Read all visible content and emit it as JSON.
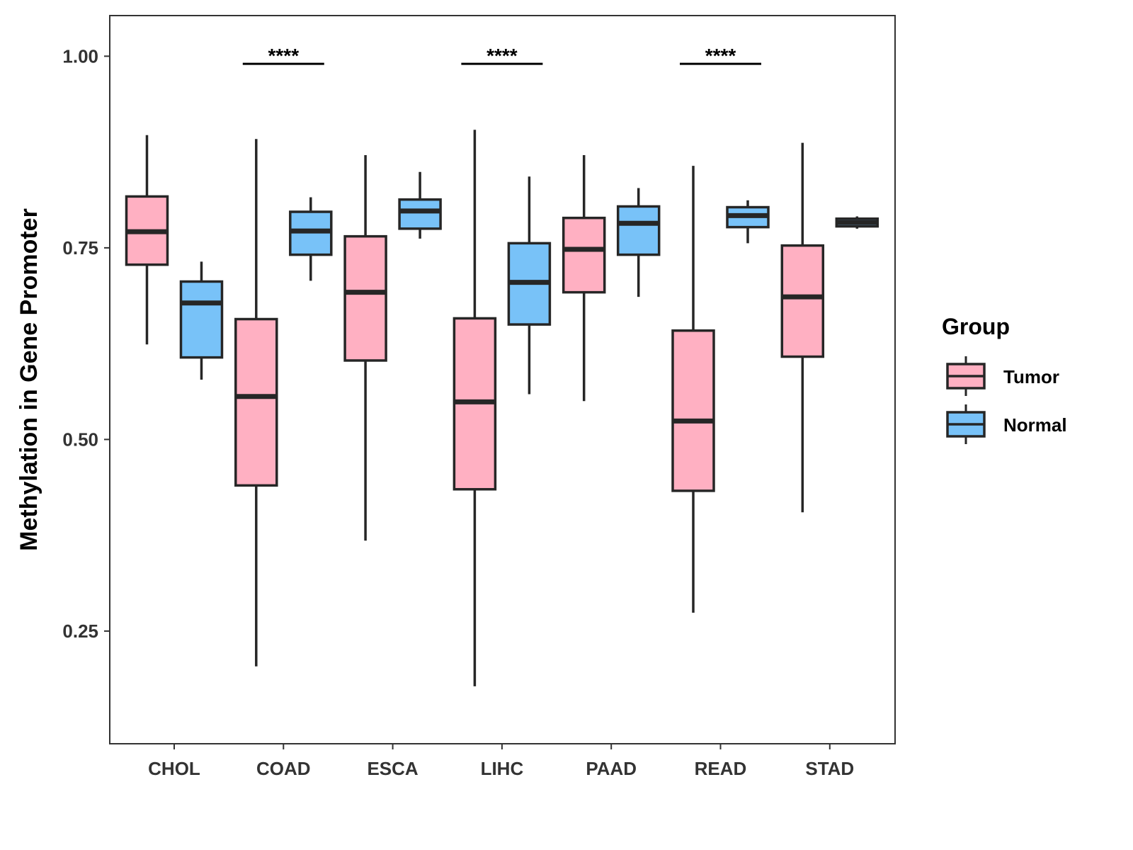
{
  "chart_data": {
    "type": "boxplot",
    "title": "",
    "xlabel": "",
    "ylabel": "Methylation in Gene Promoter",
    "ylim": [
      0.103,
      1.053
    ],
    "yticks": [
      "0.25",
      "0.50",
      "0.75",
      "1.00"
    ],
    "ytick_values": [
      0.25,
      0.5,
      0.75,
      1.0
    ],
    "grid": false,
    "categories": [
      "CHOL",
      "COAD",
      "ESCA",
      "LIHC",
      "PAAD",
      "READ",
      "STAD"
    ],
    "legend": {
      "title": "Group",
      "position": "right",
      "entries": [
        "Tumor",
        "Normal"
      ]
    },
    "colors": {
      "Tumor": "#FFB0C2",
      "Normal": "#78C2F8",
      "outline": "#262626"
    },
    "series": [
      {
        "name": "Tumor",
        "boxes": [
          {
            "min": 0.624,
            "q1": 0.728,
            "median": 0.771,
            "q3": 0.817,
            "max": 0.897
          },
          {
            "min": 0.204,
            "q1": 0.44,
            "median": 0.556,
            "q3": 0.657,
            "max": 0.892
          },
          {
            "min": 0.368,
            "q1": 0.603,
            "median": 0.692,
            "q3": 0.765,
            "max": 0.871
          },
          {
            "min": 0.178,
            "q1": 0.435,
            "median": 0.549,
            "q3": 0.658,
            "max": 0.904
          },
          {
            "min": 0.55,
            "q1": 0.692,
            "median": 0.748,
            "q3": 0.789,
            "max": 0.871
          },
          {
            "min": 0.274,
            "q1": 0.433,
            "median": 0.524,
            "q3": 0.642,
            "max": 0.857
          },
          {
            "min": 0.405,
            "q1": 0.608,
            "median": 0.686,
            "q3": 0.753,
            "max": 0.887
          }
        ]
      },
      {
        "name": "Normal",
        "boxes": [
          {
            "min": 0.578,
            "q1": 0.607,
            "median": 0.678,
            "q3": 0.706,
            "max": 0.732
          },
          {
            "min": 0.707,
            "q1": 0.741,
            "median": 0.772,
            "q3": 0.797,
            "max": 0.816
          },
          {
            "min": 0.762,
            "q1": 0.775,
            "median": 0.798,
            "q3": 0.813,
            "max": 0.849
          },
          {
            "min": 0.559,
            "q1": 0.65,
            "median": 0.705,
            "q3": 0.756,
            "max": 0.843
          },
          {
            "min": 0.686,
            "q1": 0.741,
            "median": 0.782,
            "q3": 0.804,
            "max": 0.828
          },
          {
            "min": 0.756,
            "q1": 0.777,
            "median": 0.792,
            "q3": 0.803,
            "max": 0.812
          },
          {
            "min": 0.775,
            "q1": 0.778,
            "median": 0.783,
            "q3": 0.788,
            "max": 0.791
          }
        ]
      }
    ],
    "annotations": [
      {
        "category": "COAD",
        "label": "****",
        "y": 0.99
      },
      {
        "category": "LIHC",
        "label": "****",
        "y": 0.99
      },
      {
        "category": "READ",
        "label": "****",
        "y": 0.99
      }
    ]
  }
}
